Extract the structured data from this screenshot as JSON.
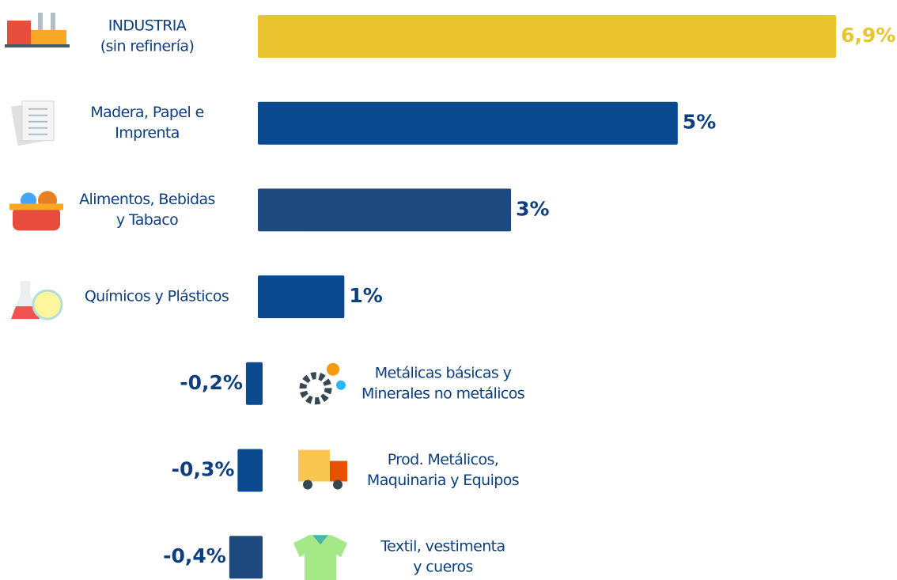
{
  "chart_data": {
    "type": "bar",
    "orientation": "horizontal",
    "categories": [
      [
        "INDUSTRIA",
        "(sin refinería)"
      ],
      [
        "Madera, Papel e",
        "Imprenta"
      ],
      [
        "Alimentos, Bebidas",
        "y Tabaco"
      ],
      [
        "Químicos  y Plásticos"
      ],
      [
        "Metálicas básicas y",
        "Minerales no metálicos"
      ],
      [
        "Prod. Metálicos,",
        "Maquinaria y Equipos"
      ],
      [
        "Textil, vestimenta",
        "y cueros"
      ]
    ],
    "values": [
      6.9,
      5,
      3,
      1,
      -0.2,
      -0.3,
      -0.4
    ],
    "value_labels": [
      "6,9%",
      "5%",
      "3%",
      "1%",
      "-0,2%",
      "-0,3%",
      "-0,4%"
    ],
    "colors": [
      "#e9c42e",
      "#0b4a8f",
      "#1f4a80",
      "#0b4a8f",
      "#0b4a8f",
      "#0b4a8f",
      "#1f4a80"
    ]
  }
}
